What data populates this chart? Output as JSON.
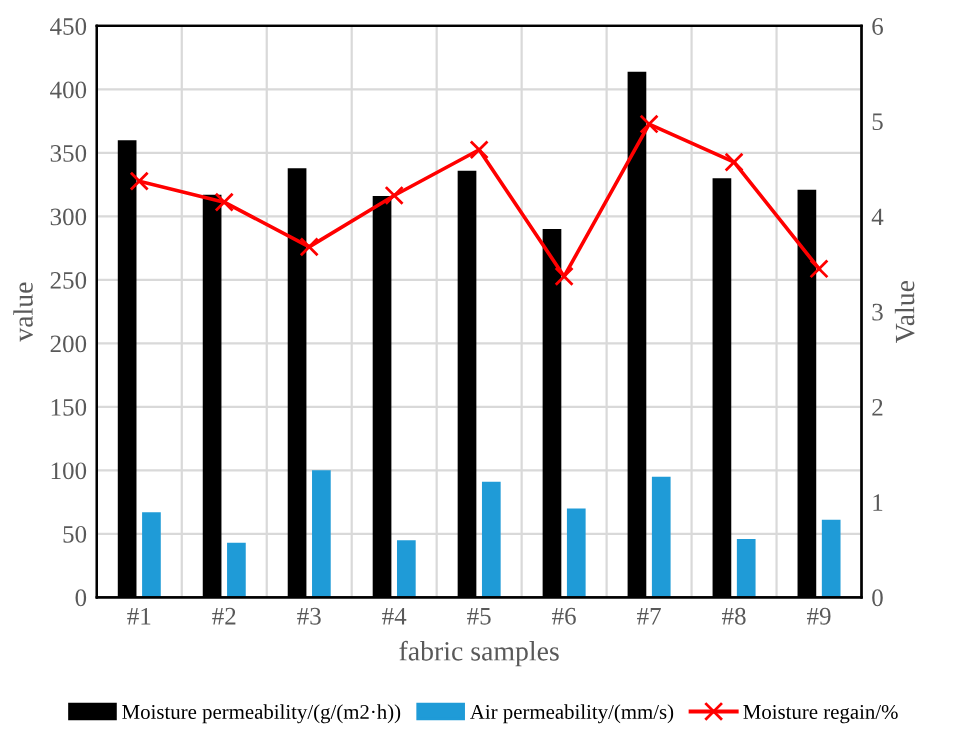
{
  "chart_data": {
    "type": "bar",
    "xlabel": "fabric samples",
    "ylabel": "value",
    "y2label": "Value",
    "categories": [
      "#1",
      "#2",
      "#3",
      "#4",
      "#5",
      "#6",
      "#7",
      "#8",
      "#9"
    ],
    "series": [
      {
        "name": "Moisture permeability/(g/(m2·h))",
        "color": "#000000",
        "values": [
          360,
          317,
          338,
          316,
          336,
          290,
          414,
          330,
          321
        ]
      },
      {
        "name": "Air permeability/(mm/s)",
        "color": "#1f9bd7",
        "values": [
          67,
          43,
          100,
          45,
          91,
          70,
          95,
          46,
          61
        ]
      },
      {
        "name": "Moisture regain/%",
        "type": "line",
        "axis": "y2",
        "color": "#ff0000",
        "marker": "cross",
        "values": [
          4.37,
          4.15,
          3.68,
          4.22,
          4.7,
          3.37,
          4.97,
          4.57,
          3.45
        ]
      }
    ],
    "ylim": [
      0,
      450
    ],
    "yticks": [
      0,
      50,
      100,
      150,
      200,
      250,
      300,
      350,
      400,
      450
    ],
    "y2lim": [
      0,
      6
    ],
    "y2ticks": [
      0,
      1,
      2,
      3,
      4,
      5,
      6
    ],
    "grid": true,
    "legend": "bottom"
  }
}
